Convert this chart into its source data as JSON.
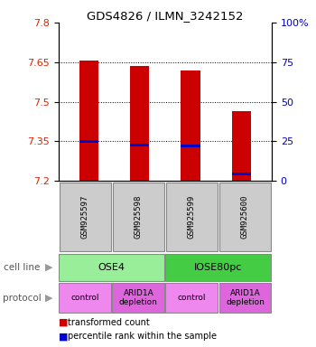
{
  "title": "GDS4826 / ILMN_3242152",
  "samples": [
    "GSM925597",
    "GSM925598",
    "GSM925599",
    "GSM925600"
  ],
  "bar_bottoms": [
    7.2,
    7.2,
    7.2,
    7.2
  ],
  "bar_tops": [
    7.655,
    7.635,
    7.62,
    7.465
  ],
  "percentile_values": [
    7.348,
    7.335,
    7.332,
    7.225
  ],
  "ylim": [
    7.2,
    7.8
  ],
  "yticks_left": [
    7.2,
    7.35,
    7.5,
    7.65,
    7.8
  ],
  "yticks_right": [
    0,
    25,
    50,
    75,
    100
  ],
  "bar_color": "#cc0000",
  "blue_color": "#0000cc",
  "cell_line_groups": [
    {
      "label": "OSE4",
      "span": [
        0,
        2
      ],
      "color": "#99ee99"
    },
    {
      "label": "IOSE80pc",
      "span": [
        2,
        4
      ],
      "color": "#44cc44"
    }
  ],
  "protocol_groups": [
    {
      "label": "control",
      "span": [
        0,
        1
      ],
      "color": "#ee88ee"
    },
    {
      "label": "ARID1A\ndepletion",
      "span": [
        1,
        2
      ],
      "color": "#dd66dd"
    },
    {
      "label": "control",
      "span": [
        2,
        3
      ],
      "color": "#ee88ee"
    },
    {
      "label": "ARID1A\ndepletion",
      "span": [
        3,
        4
      ],
      "color": "#dd66dd"
    }
  ],
  "sample_box_color": "#cccccc",
  "legend_red_label": "transformed count",
  "legend_blue_label": "percentile rank within the sample",
  "cell_line_label": "cell line",
  "protocol_label": "protocol",
  "bar_width": 0.38
}
